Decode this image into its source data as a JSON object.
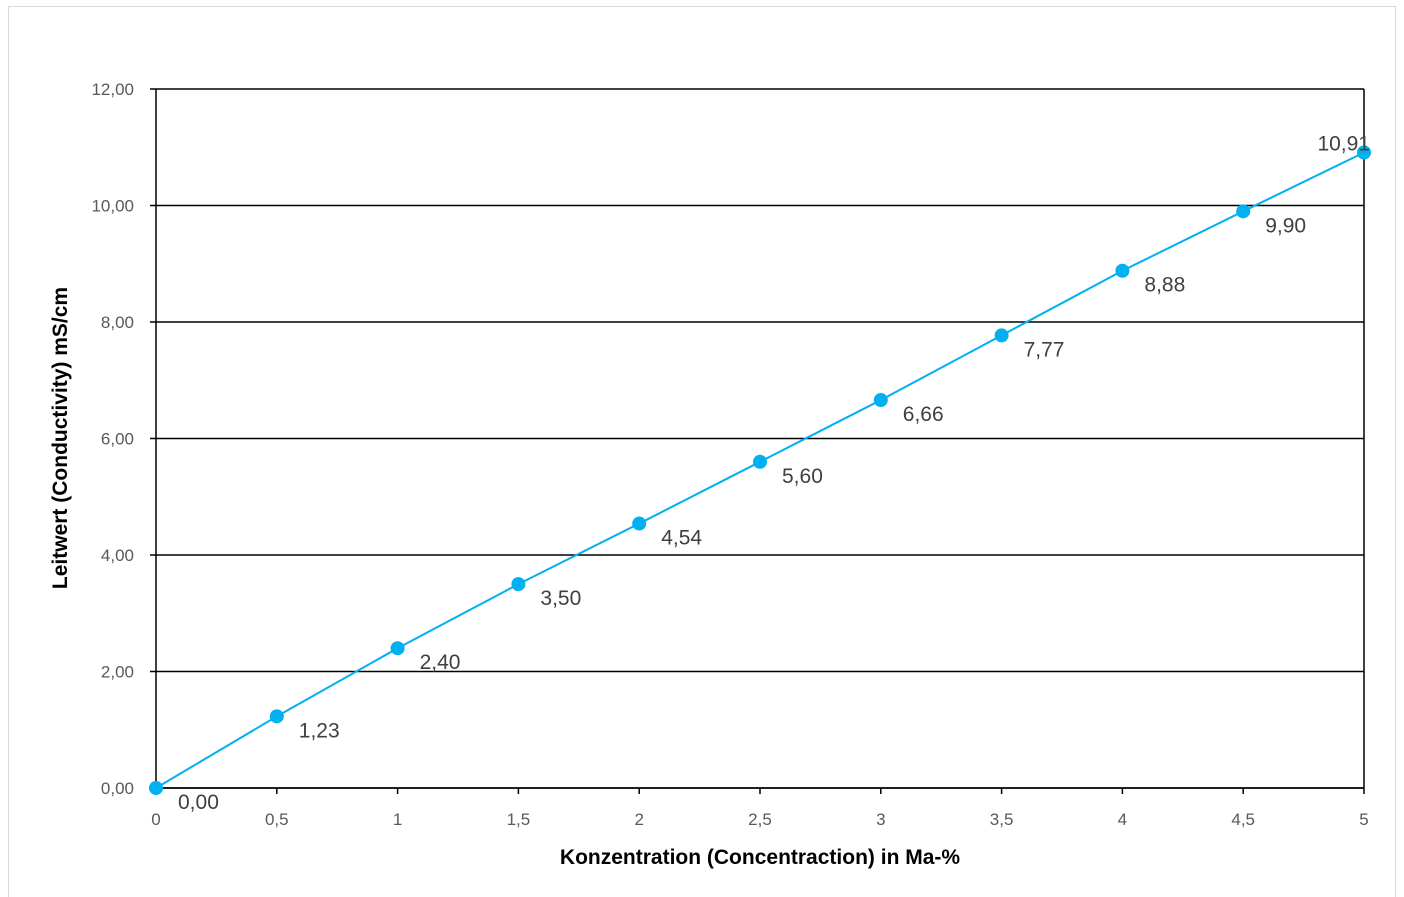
{
  "chart_data": {
    "type": "line",
    "title": "",
    "xlabel": "Konzentration (Concentraction) in Ma-%",
    "ylabel": "Leitwert (Conductivity) mS/cm",
    "xlim": [
      0,
      5
    ],
    "ylim": [
      0,
      12
    ],
    "x_ticks": [
      "0",
      "0,5",
      "1",
      "1,5",
      "2",
      "2,5",
      "3",
      "3,5",
      "4",
      "4,5",
      "5"
    ],
    "y_ticks": [
      "0,00",
      "2,00",
      "4,00",
      "6,00",
      "8,00",
      "10,00",
      "12,00"
    ],
    "grid": "horizontal",
    "legend": "none",
    "series": [
      {
        "x": [
          0,
          0.5,
          1,
          1.5,
          2,
          2.5,
          3,
          3.5,
          4,
          4.5,
          5
        ],
        "values": [
          0.0,
          1.23,
          2.4,
          3.5,
          4.54,
          5.6,
          6.66,
          7.77,
          8.88,
          9.9,
          10.91
        ],
        "labels": [
          "0,00",
          "1,23",
          "2,40",
          "3,50",
          "4,54",
          "5,60",
          "6,66",
          "7,77",
          "8,88",
          "9,90",
          "10,91"
        ],
        "color": "#00b0f0"
      }
    ]
  }
}
